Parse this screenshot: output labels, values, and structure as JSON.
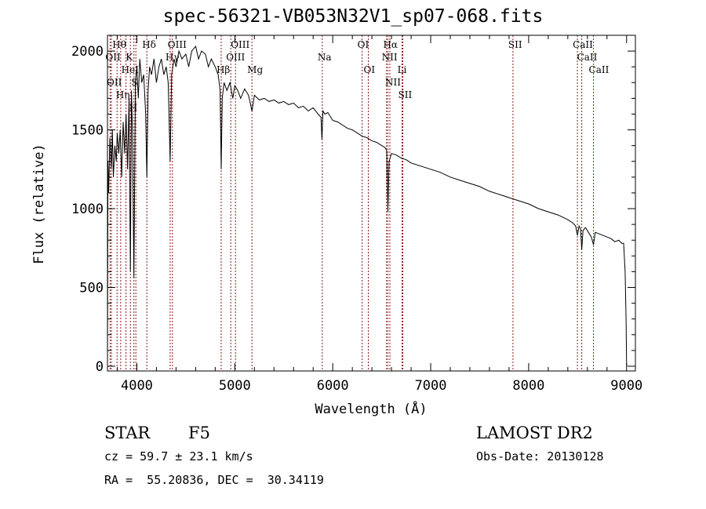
{
  "chart_data": {
    "type": "line",
    "title": "spec-56321-VB053N32V1_sp07-068.fits",
    "xlabel": "Wavelength (Å)",
    "ylabel": "Flux (relative)",
    "xlim": [
      3700,
      9090
    ],
    "ylim": [
      -30,
      2100
    ],
    "xticks": [
      4000,
      5000,
      6000,
      7000,
      8000,
      9000
    ],
    "xtick_labels": [
      "4000",
      "5000",
      "6000",
      "7000",
      "8000",
      "9000"
    ],
    "yticks": [
      0,
      500,
      1000,
      1500,
      2000
    ],
    "ytick_labels": [
      "0",
      "500",
      "1000",
      "1500",
      "2000"
    ],
    "grid": false,
    "series": [
      {
        "name": "flux",
        "x": [
          3700,
          3705,
          3712,
          3725,
          3740,
          3750,
          3760,
          3775,
          3790,
          3800,
          3815,
          3830,
          3845,
          3860,
          3875,
          3890,
          3905,
          3920,
          3934,
          3945,
          3955,
          3970,
          3985,
          4000,
          4015,
          4030,
          4050,
          4070,
          4090,
          4102,
          4115,
          4130,
          4150,
          4175,
          4200,
          4225,
          4250,
          4275,
          4300,
          4320,
          4340,
          4355,
          4380,
          4400,
          4430,
          4460,
          4500,
          4530,
          4560,
          4600,
          4630,
          4660,
          4700,
          4730,
          4760,
          4800,
          4830,
          4850,
          4861,
          4872,
          4890,
          4920,
          4950,
          4980,
          5000,
          5030,
          5060,
          5100,
          5140,
          5175,
          5200,
          5250,
          5300,
          5350,
          5400,
          5450,
          5500,
          5550,
          5600,
          5650,
          5700,
          5750,
          5800,
          5850,
          5880,
          5890,
          5900,
          5920,
          5950,
          6000,
          6050,
          6100,
          6150,
          6200,
          6250,
          6300,
          6350,
          6400,
          6450,
          6500,
          6530,
          6550,
          6563,
          6575,
          6600,
          6650,
          6700,
          6750,
          6800,
          6900,
          7000,
          7100,
          7200,
          7300,
          7400,
          7500,
          7600,
          7700,
          7800,
          7900,
          8000,
          8100,
          8200,
          8300,
          8400,
          8450,
          8480,
          8498,
          8515,
          8530,
          8542,
          8555,
          8580,
          8610,
          8640,
          8662,
          8680,
          8720,
          8760,
          8800,
          8840,
          8880,
          8920,
          8950,
          8970,
          8985,
          8995,
          9000
        ],
        "y": [
          0,
          1300,
          1100,
          1450,
          1250,
          1500,
          1200,
          1400,
          1300,
          1480,
          1350,
          1500,
          1200,
          1550,
          1350,
          1600,
          1250,
          1700,
          600,
          1750,
          1500,
          560,
          1800,
          1900,
          1700,
          1950,
          1800,
          1850,
          1600,
          1200,
          1750,
          1900,
          1850,
          1950,
          1800,
          1900,
          1950,
          1850,
          1900,
          1800,
          1300,
          1850,
          1950,
          1900,
          2000,
          1950,
          1980,
          1900,
          2000,
          2030,
          1950,
          2000,
          1980,
          1900,
          1950,
          1900,
          1850,
          1750,
          1250,
          1700,
          1800,
          1750,
          1800,
          1700,
          1780,
          1750,
          1700,
          1760,
          1720,
          1620,
          1720,
          1690,
          1700,
          1680,
          1690,
          1670,
          1680,
          1660,
          1670,
          1640,
          1650,
          1620,
          1640,
          1600,
          1580,
          1440,
          1620,
          1600,
          1610,
          1560,
          1550,
          1530,
          1510,
          1500,
          1480,
          1460,
          1450,
          1430,
          1420,
          1400,
          1390,
          1370,
          980,
          1300,
          1350,
          1340,
          1320,
          1310,
          1290,
          1270,
          1250,
          1230,
          1200,
          1180,
          1160,
          1140,
          1110,
          1090,
          1070,
          1050,
          1030,
          1000,
          980,
          960,
          930,
          910,
          890,
          830,
          890,
          870,
          740,
          860,
          880,
          850,
          820,
          770,
          850,
          840,
          830,
          820,
          810,
          790,
          800,
          780,
          780,
          600,
          300,
          0
        ]
      }
    ],
    "lines": [
      {
        "label": "Hθ",
        "wave": 3798,
        "tier": 0
      },
      {
        "label": "K",
        "wave": 3934,
        "tier": 0
      },
      {
        "label": "Hδ",
        "wave": 4102,
        "tier": 0
      },
      {
        "label": "OIII",
        "wave": 4363,
        "tier": 0
      },
      {
        "label": "OIII",
        "wave": 5007,
        "tier": 0
      },
      {
        "label": "OI",
        "wave": 6300,
        "tier": 0
      },
      {
        "label": "Hα",
        "wave": 6563,
        "tier": 0
      },
      {
        "label": "SII",
        "wave": 7840,
        "tier": 0
      },
      {
        "label": "CaII",
        "wave": 8498,
        "tier": 0
      },
      {
        "label": "OII",
        "wave": 3727,
        "tier": 1
      },
      {
        "label": "HeI",
        "wave": 3889,
        "tier": 1
      },
      {
        "label": "S",
        "wave": 3990,
        "tier": 1
      },
      {
        "label": "Hγ",
        "wave": 4340,
        "tier": 1
      },
      {
        "label": "OIII",
        "wave": 4959,
        "tier": 1
      },
      {
        "label": "Na",
        "wave": 5893,
        "tier": 1
      },
      {
        "label": "NII",
        "wave": 6548,
        "tier": 1
      },
      {
        "label": "Li",
        "wave": 6708,
        "tier": 1
      },
      {
        "label": "CaII",
        "wave": 8542,
        "tier": 1
      },
      {
        "label": "OII",
        "wave": 3740,
        "tier": 2
      },
      {
        "label": "Hη",
        "wave": 3835,
        "tier": 2
      },
      {
        "label": "H",
        "wave": 3970,
        "tier": 2
      },
      {
        "label": "Hβ",
        "wave": 4861,
        "tier": 2
      },
      {
        "label": "Mg",
        "wave": 5175,
        "tier": 2
      },
      {
        "label": "OI",
        "wave": 6363,
        "tier": 2
      },
      {
        "label": "NII",
        "wave": 6583,
        "tier": 2
      },
      {
        "label": "SII",
        "wave": 6716,
        "tier": 2
      },
      {
        "label": "CaII",
        "wave": 8662,
        "tier": 2
      }
    ],
    "line_color": "#8b1a1a"
  },
  "info": {
    "object_class": "STAR",
    "subclass": "F5",
    "cz": "cz = 59.7 ± 23.1 km/s",
    "coords": "RA =  55.20836, DEC =  30.34119",
    "survey": "LAMOST DR2",
    "obs_date": "Obs-Date: 20130128"
  }
}
